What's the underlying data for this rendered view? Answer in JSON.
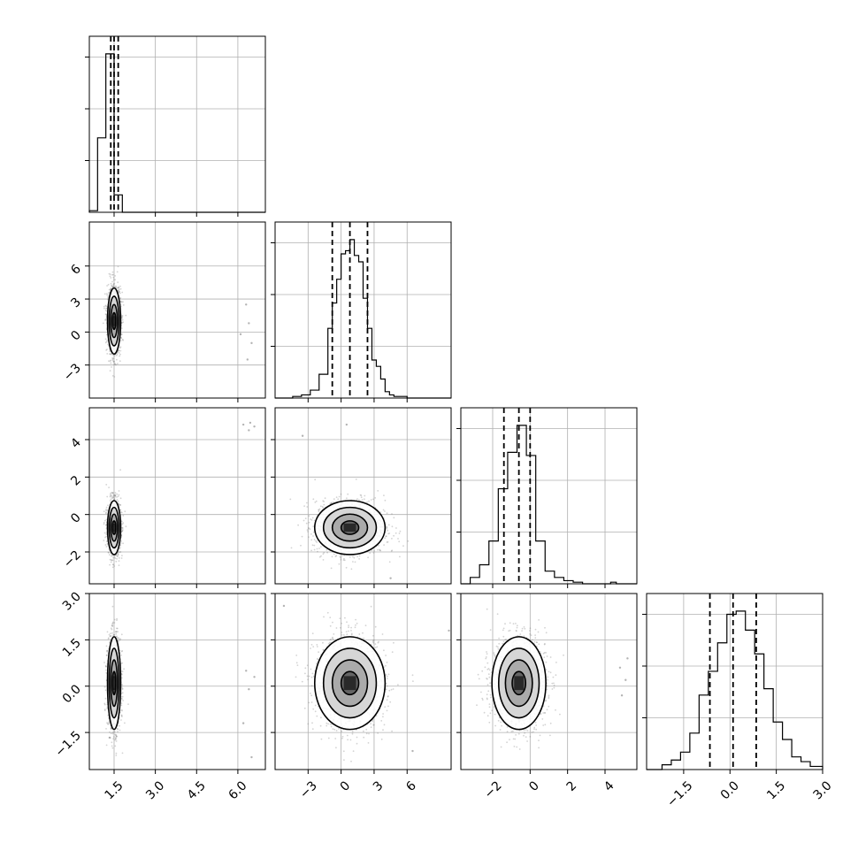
{
  "chart_data": {
    "type": "corner",
    "n_params": 4,
    "style": {
      "frame_color": "#000000",
      "grid_color": "#b0b0b0",
      "hist_color": "#000000",
      "point_color": "#808080"
    },
    "params": [
      {
        "index": 0,
        "range": [
          0.6,
          7.0
        ],
        "ticks": [
          "1.5",
          "3.0",
          "4.5",
          "6.0"
        ],
        "tick_values": [
          1.5,
          3.0,
          4.5,
          6.0
        ],
        "quantiles": [
          1.38,
          1.5,
          1.65
        ]
      },
      {
        "index": 1,
        "range": [
          -6.0,
          10.0
        ],
        "ticks": [
          "−3",
          "0",
          "3",
          "6"
        ],
        "tick_values": [
          -3,
          0,
          3,
          6
        ],
        "quantiles": [
          -0.8,
          0.8,
          2.4
        ]
      },
      {
        "index": 2,
        "range": [
          -3.7,
          5.7
        ],
        "ticks": [
          "−2",
          "0",
          "2",
          "4"
        ],
        "tick_values": [
          -2,
          0,
          2,
          4
        ],
        "quantiles": [
          -1.4,
          -0.6,
          0.0
        ]
      },
      {
        "index": 3,
        "range": [
          -2.7,
          3.0
        ],
        "ticks": [
          "−1.5",
          "0.0",
          "1.5",
          "3.0"
        ],
        "tick_values": [
          -1.5,
          0.0,
          1.5,
          3.0
        ],
        "quantiles": [
          -0.65,
          0.1,
          0.85
        ]
      }
    ],
    "histograms": [
      {
        "param": 0,
        "bin_edges": [
          0.6,
          0.9,
          1.2,
          1.5,
          1.8,
          2.1
        ],
        "counts": [
          0.01,
          0.47,
          1.0,
          0.11,
          0.0
        ]
      },
      {
        "param": 1,
        "bin_edges": [
          -6.0,
          -5.2,
          -4.4,
          -3.6,
          -2.8,
          -2.0,
          -1.2,
          -0.8,
          -0.4,
          0.0,
          0.4,
          0.8,
          1.2,
          1.6,
          2.0,
          2.4,
          2.8,
          3.2,
          3.6,
          4.0,
          4.4,
          4.8,
          5.2,
          6.0,
          7.0
        ],
        "counts": [
          0.0,
          0.0,
          0.01,
          0.02,
          0.05,
          0.15,
          0.44,
          0.6,
          0.75,
          0.91,
          0.93,
          1.0,
          0.9,
          0.86,
          0.63,
          0.44,
          0.24,
          0.2,
          0.12,
          0.04,
          0.02,
          0.01,
          0.01,
          0.0
        ]
      },
      {
        "param": 2,
        "bin_edges": [
          -3.7,
          -3.2,
          -2.7,
          -2.2,
          -1.7,
          -1.2,
          -0.7,
          -0.2,
          0.3,
          0.8,
          1.3,
          1.8,
          2.3,
          2.8,
          3.8,
          4.3,
          4.6,
          5.0
        ],
        "counts": [
          0.0,
          0.04,
          0.12,
          0.27,
          0.6,
          0.83,
          1.0,
          0.81,
          0.27,
          0.08,
          0.04,
          0.02,
          0.01,
          0.0,
          0.0,
          0.01,
          0.0
        ]
      },
      {
        "param": 3,
        "bin_edges": [
          -2.7,
          -2.2,
          -1.9,
          -1.6,
          -1.3,
          -1.0,
          -0.7,
          -0.4,
          -0.1,
          0.2,
          0.5,
          0.8,
          1.1,
          1.4,
          1.7,
          2.0,
          2.3,
          2.6,
          3.0
        ],
        "counts": [
          0.0,
          0.03,
          0.06,
          0.11,
          0.23,
          0.47,
          0.62,
          0.8,
          0.98,
          1.0,
          0.88,
          0.73,
          0.51,
          0.3,
          0.19,
          0.08,
          0.05,
          0.02
        ]
      }
    ],
    "pairs": [
      {
        "x_param": 0,
        "y_param": 1,
        "x_center": 1.5,
        "y_center": 1.0,
        "x_sigma": 0.12,
        "y_sigma": 1.5,
        "outliers": [
          [
            6.3,
            2.5
          ],
          [
            6.4,
            0.8
          ],
          [
            6.5,
            -1.0
          ],
          [
            6.35,
            -2.5
          ],
          [
            6.1,
            -0.2
          ]
        ]
      },
      {
        "x_param": 0,
        "y_param": 2,
        "x_center": 1.5,
        "y_center": -0.7,
        "x_sigma": 0.12,
        "y_sigma": 0.72,
        "outliers": [
          [
            6.2,
            4.8
          ],
          [
            6.4,
            4.5
          ],
          [
            6.6,
            4.7
          ],
          [
            6.45,
            4.9
          ]
        ]
      },
      {
        "x_param": 1,
        "y_param": 2,
        "x_center": 0.8,
        "y_center": -0.7,
        "x_sigma": 1.6,
        "y_sigma": 0.72,
        "outliers": [
          [
            0.5,
            4.8
          ],
          [
            -3.5,
            4.2
          ],
          [
            4.5,
            -3.4
          ]
        ]
      },
      {
        "x_param": 0,
        "y_param": 3,
        "x_center": 1.5,
        "y_center": 0.1,
        "x_sigma": 0.12,
        "y_sigma": 0.75,
        "outliers": [
          [
            6.3,
            0.5
          ],
          [
            6.4,
            -0.1
          ],
          [
            6.2,
            -1.2
          ],
          [
            6.5,
            -2.3
          ],
          [
            6.6,
            0.3
          ]
        ]
      },
      {
        "x_param": 1,
        "y_param": 3,
        "x_center": 0.8,
        "y_center": 0.1,
        "x_sigma": 1.6,
        "y_sigma": 0.75,
        "outliers": [
          [
            -5.2,
            2.6
          ],
          [
            6.5,
            -2.1
          ],
          [
            9.8,
            1.8
          ]
        ]
      },
      {
        "x_param": 2,
        "y_param": 3,
        "x_center": -0.6,
        "y_center": 0.1,
        "x_sigma": 0.72,
        "y_sigma": 0.75,
        "outliers": [
          [
            4.8,
            0.6
          ],
          [
            5.1,
            0.2
          ],
          [
            4.9,
            -0.3
          ],
          [
            5.2,
            0.9
          ]
        ]
      }
    ]
  }
}
